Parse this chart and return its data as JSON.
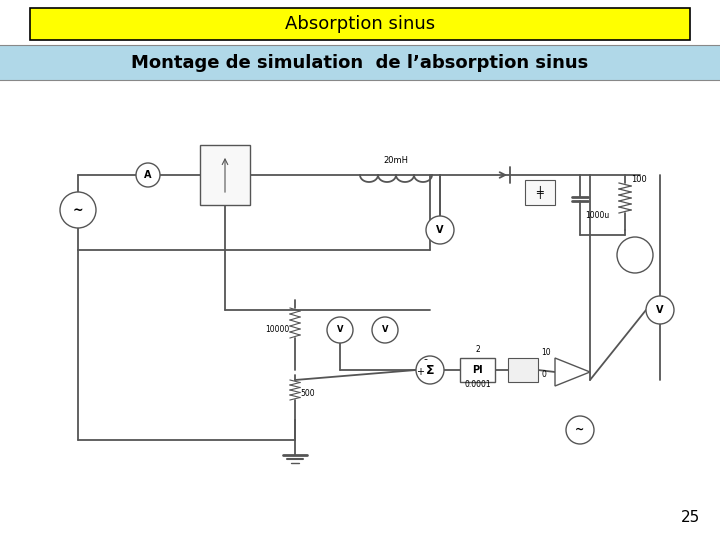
{
  "title": "Absorption sinus",
  "subtitle": "Montage de simulation  de l’absorption sinus",
  "page_number": "25",
  "title_bg": "#FFFF00",
  "subtitle_bg": "#B0D8E8",
  "main_bg": "#FFFFFF",
  "title_border": "#000000",
  "title_fontsize": 13,
  "subtitle_fontsize": 13,
  "page_fontsize": 11
}
